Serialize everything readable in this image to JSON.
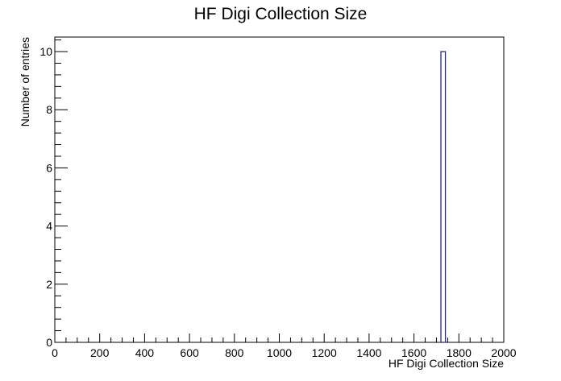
{
  "chart_data": {
    "type": "bar",
    "title": "HF Digi Collection Size",
    "xlabel": "HF Digi Collection Size",
    "ylabel": "Number of entries",
    "xlim": [
      0,
      2000
    ],
    "ylim": [
      0,
      10.5
    ],
    "x_ticks": [
      "0",
      "200",
      "400",
      "600",
      "800",
      "1000",
      "1200",
      "1400",
      "1600",
      "1800",
      "2000"
    ],
    "y_ticks": [
      "0",
      "2",
      "4",
      "6",
      "8",
      "10"
    ],
    "bins": [
      {
        "x_low": 1720,
        "x_high": 1740,
        "value": 10
      }
    ],
    "bar_color": "#2b2b8c",
    "grid": false,
    "legend": "none"
  }
}
